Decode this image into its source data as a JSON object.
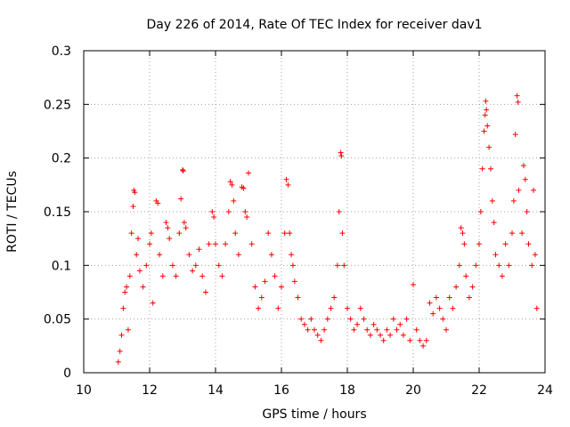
{
  "chart_data": {
    "type": "scatter",
    "title": "Day 226 of 2014, Rate Of TEC Index for receiver dav1",
    "xlabel": "GPS time / hours",
    "ylabel": "ROTI / TECUs",
    "xlim": [
      10,
      24
    ],
    "ylim": [
      0,
      0.3
    ],
    "x_ticks": [
      10,
      12,
      14,
      16,
      18,
      20,
      22,
      24
    ],
    "x_tick_labels": [
      "10",
      "12",
      "14",
      "16",
      "18",
      "20",
      "22",
      "24"
    ],
    "y_ticks": [
      0,
      0.05,
      0.1,
      0.15,
      0.2,
      0.25,
      0.3
    ],
    "y_tick_labels": [
      "0",
      "0.05",
      "0.1",
      "0.15",
      "0.2",
      "0.25",
      "0.3"
    ],
    "grid": true,
    "marker": "+",
    "marker_color": "#ff0000",
    "x_range_of_data": [
      11.0,
      23.8
    ],
    "series": [
      {
        "name": "ROTI",
        "points": [
          [
            11.05,
            0.01
          ],
          [
            11.1,
            0.02
          ],
          [
            11.15,
            0.035
          ],
          [
            11.2,
            0.06
          ],
          [
            11.25,
            0.075
          ],
          [
            11.3,
            0.08
          ],
          [
            11.35,
            0.04
          ],
          [
            11.4,
            0.09
          ],
          [
            11.45,
            0.13
          ],
          [
            11.5,
            0.155
          ],
          [
            11.52,
            0.17
          ],
          [
            11.55,
            0.168
          ],
          [
            11.6,
            0.11
          ],
          [
            11.65,
            0.125
          ],
          [
            11.7,
            0.095
          ],
          [
            11.8,
            0.08
          ],
          [
            11.9,
            0.1
          ],
          [
            12.0,
            0.12
          ],
          [
            12.05,
            0.13
          ],
          [
            12.1,
            0.065
          ],
          [
            12.2,
            0.16
          ],
          [
            12.25,
            0.158
          ],
          [
            12.3,
            0.11
          ],
          [
            12.4,
            0.09
          ],
          [
            12.5,
            0.14
          ],
          [
            12.55,
            0.135
          ],
          [
            12.6,
            0.125
          ],
          [
            12.7,
            0.1
          ],
          [
            12.8,
            0.09
          ],
          [
            12.9,
            0.13
          ],
          [
            12.95,
            0.162
          ],
          [
            13.0,
            0.189
          ],
          [
            13.02,
            0.188
          ],
          [
            13.05,
            0.14
          ],
          [
            13.1,
            0.135
          ],
          [
            13.2,
            0.11
          ],
          [
            13.3,
            0.095
          ],
          [
            13.4,
            0.1
          ],
          [
            13.5,
            0.115
          ],
          [
            13.6,
            0.09
          ],
          [
            13.7,
            0.075
          ],
          [
            13.8,
            0.12
          ],
          [
            13.9,
            0.15
          ],
          [
            13.95,
            0.145
          ],
          [
            14.0,
            0.12
          ],
          [
            14.1,
            0.1
          ],
          [
            14.2,
            0.09
          ],
          [
            14.3,
            0.12
          ],
          [
            14.4,
            0.15
          ],
          [
            14.45,
            0.178
          ],
          [
            14.5,
            0.175
          ],
          [
            14.55,
            0.16
          ],
          [
            14.6,
            0.13
          ],
          [
            14.7,
            0.11
          ],
          [
            14.8,
            0.173
          ],
          [
            14.85,
            0.172
          ],
          [
            14.9,
            0.15
          ],
          [
            14.95,
            0.145
          ],
          [
            15.0,
            0.186
          ],
          [
            15.1,
            0.12
          ],
          [
            15.2,
            0.08
          ],
          [
            15.3,
            0.06
          ],
          [
            15.4,
            0.07
          ],
          [
            15.5,
            0.085
          ],
          [
            15.6,
            0.13
          ],
          [
            15.7,
            0.11
          ],
          [
            15.8,
            0.09
          ],
          [
            15.9,
            0.06
          ],
          [
            16.0,
            0.08
          ],
          [
            16.1,
            0.13
          ],
          [
            16.15,
            0.18
          ],
          [
            16.2,
            0.175
          ],
          [
            16.25,
            0.13
          ],
          [
            16.3,
            0.11
          ],
          [
            16.35,
            0.1
          ],
          [
            16.4,
            0.085
          ],
          [
            16.5,
            0.07
          ],
          [
            16.6,
            0.05
          ],
          [
            16.7,
            0.045
          ],
          [
            16.8,
            0.04
          ],
          [
            16.9,
            0.05
          ],
          [
            17.0,
            0.04
          ],
          [
            17.1,
            0.035
          ],
          [
            17.2,
            0.03
          ],
          [
            17.3,
            0.04
          ],
          [
            17.4,
            0.05
          ],
          [
            17.5,
            0.06
          ],
          [
            17.6,
            0.07
          ],
          [
            17.7,
            0.1
          ],
          [
            17.75,
            0.15
          ],
          [
            17.8,
            0.205
          ],
          [
            17.82,
            0.202
          ],
          [
            17.85,
            0.13
          ],
          [
            17.9,
            0.1
          ],
          [
            18.0,
            0.06
          ],
          [
            18.1,
            0.05
          ],
          [
            18.2,
            0.04
          ],
          [
            18.3,
            0.045
          ],
          [
            18.4,
            0.06
          ],
          [
            18.5,
            0.05
          ],
          [
            18.6,
            0.04
          ],
          [
            18.7,
            0.035
          ],
          [
            18.8,
            0.045
          ],
          [
            18.9,
            0.04
          ],
          [
            19.0,
            0.035
          ],
          [
            19.1,
            0.03
          ],
          [
            19.2,
            0.04
          ],
          [
            19.3,
            0.035
          ],
          [
            19.4,
            0.05
          ],
          [
            19.5,
            0.04
          ],
          [
            19.6,
            0.045
          ],
          [
            19.7,
            0.035
          ],
          [
            19.8,
            0.05
          ],
          [
            19.9,
            0.03
          ],
          [
            20.0,
            0.082
          ],
          [
            20.1,
            0.04
          ],
          [
            20.2,
            0.03
          ],
          [
            20.3,
            0.025
          ],
          [
            20.4,
            0.03
          ],
          [
            20.5,
            0.065
          ],
          [
            20.6,
            0.055
          ],
          [
            20.7,
            0.07
          ],
          [
            20.8,
            0.06
          ],
          [
            20.9,
            0.05
          ],
          [
            21.0,
            0.04
          ],
          [
            21.1,
            0.07
          ],
          [
            21.2,
            0.06
          ],
          [
            21.3,
            0.08
          ],
          [
            21.4,
            0.1
          ],
          [
            21.45,
            0.135
          ],
          [
            21.5,
            0.13
          ],
          [
            21.55,
            0.12
          ],
          [
            21.6,
            0.09
          ],
          [
            21.7,
            0.07
          ],
          [
            21.8,
            0.08
          ],
          [
            21.9,
            0.1
          ],
          [
            22.0,
            0.12
          ],
          [
            22.05,
            0.15
          ],
          [
            22.1,
            0.19
          ],
          [
            22.15,
            0.225
          ],
          [
            22.18,
            0.24
          ],
          [
            22.2,
            0.253
          ],
          [
            22.22,
            0.245
          ],
          [
            22.25,
            0.23
          ],
          [
            22.3,
            0.21
          ],
          [
            22.35,
            0.19
          ],
          [
            22.4,
            0.16
          ],
          [
            22.45,
            0.14
          ],
          [
            22.5,
            0.11
          ],
          [
            22.6,
            0.1
          ],
          [
            22.7,
            0.09
          ],
          [
            22.8,
            0.12
          ],
          [
            22.9,
            0.1
          ],
          [
            23.0,
            0.13
          ],
          [
            23.05,
            0.16
          ],
          [
            23.1,
            0.222
          ],
          [
            23.15,
            0.258
          ],
          [
            23.18,
            0.252
          ],
          [
            23.2,
            0.17
          ],
          [
            23.3,
            0.13
          ],
          [
            23.35,
            0.193
          ],
          [
            23.4,
            0.18
          ],
          [
            23.45,
            0.15
          ],
          [
            23.5,
            0.12
          ],
          [
            23.6,
            0.1
          ],
          [
            23.65,
            0.17
          ],
          [
            23.7,
            0.11
          ],
          [
            23.75,
            0.06
          ]
        ]
      }
    ]
  }
}
